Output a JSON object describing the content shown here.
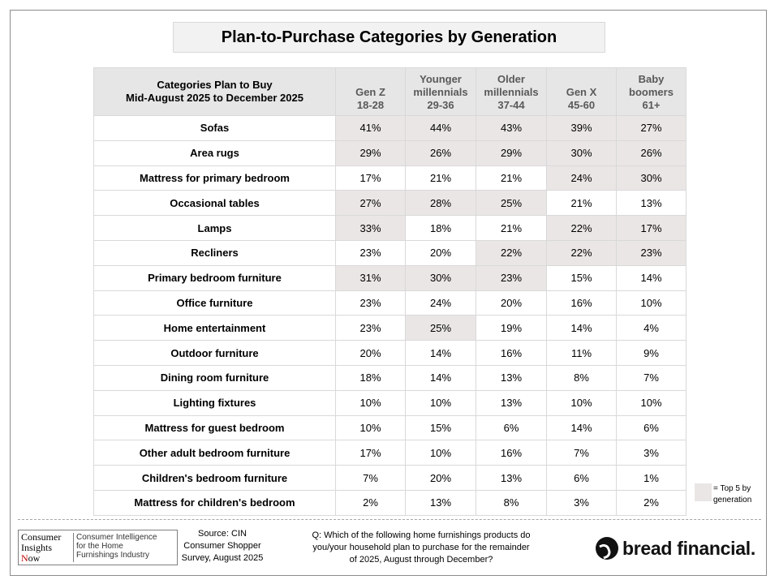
{
  "title": "Plan-to-Purchase Categories by Generation",
  "table": {
    "header_category": [
      "Categories Plan to Buy",
      "Mid-August 2025 to December 2025"
    ],
    "columns": [
      {
        "lines": [
          "Gen Z",
          "18-28"
        ]
      },
      {
        "lines": [
          "Younger",
          "millennials",
          "29-36"
        ]
      },
      {
        "lines": [
          "Older",
          "millennials",
          "37-44"
        ]
      },
      {
        "lines": [
          "Gen X",
          "45-60"
        ]
      },
      {
        "lines": [
          "Baby",
          "boomers",
          "61+"
        ]
      }
    ],
    "rows": [
      {
        "label": "Sofas",
        "values": [
          "41%",
          "44%",
          "43%",
          "39%",
          "27%"
        ],
        "top5": [
          true,
          true,
          true,
          true,
          true
        ]
      },
      {
        "label": "Area rugs",
        "values": [
          "29%",
          "26%",
          "29%",
          "30%",
          "26%"
        ],
        "top5": [
          true,
          true,
          true,
          true,
          true
        ]
      },
      {
        "label": "Mattress for primary bedroom",
        "values": [
          "17%",
          "21%",
          "21%",
          "24%",
          "30%"
        ],
        "top5": [
          false,
          false,
          false,
          true,
          true
        ]
      },
      {
        "label": "Occasional tables",
        "values": [
          "27%",
          "28%",
          "25%",
          "21%",
          "13%"
        ],
        "top5": [
          true,
          true,
          true,
          false,
          false
        ]
      },
      {
        "label": "Lamps",
        "values": [
          "33%",
          "18%",
          "21%",
          "22%",
          "17%"
        ],
        "top5": [
          true,
          false,
          false,
          true,
          true
        ]
      },
      {
        "label": "Recliners",
        "values": [
          "23%",
          "20%",
          "22%",
          "22%",
          "23%"
        ],
        "top5": [
          false,
          false,
          true,
          true,
          true
        ]
      },
      {
        "label": "Primary bedroom furniture",
        "values": [
          "31%",
          "30%",
          "23%",
          "15%",
          "14%"
        ],
        "top5": [
          true,
          true,
          true,
          false,
          false
        ]
      },
      {
        "label": "Office furniture",
        "values": [
          "23%",
          "24%",
          "20%",
          "16%",
          "10%"
        ],
        "top5": [
          false,
          false,
          false,
          false,
          false
        ]
      },
      {
        "label": "Home entertainment",
        "values": [
          "23%",
          "25%",
          "19%",
          "14%",
          "4%"
        ],
        "top5": [
          false,
          true,
          false,
          false,
          false
        ]
      },
      {
        "label": "Outdoor furniture",
        "values": [
          "20%",
          "14%",
          "16%",
          "11%",
          "9%"
        ],
        "top5": [
          false,
          false,
          false,
          false,
          false
        ]
      },
      {
        "label": "Dining room furniture",
        "values": [
          "18%",
          "14%",
          "13%",
          "8%",
          "7%"
        ],
        "top5": [
          false,
          false,
          false,
          false,
          false
        ]
      },
      {
        "label": "Lighting fixtures",
        "values": [
          "10%",
          "10%",
          "13%",
          "10%",
          "10%"
        ],
        "top5": [
          false,
          false,
          false,
          false,
          false
        ]
      },
      {
        "label": "Mattress for guest bedroom",
        "values": [
          "10%",
          "15%",
          "6%",
          "14%",
          "6%"
        ],
        "top5": [
          false,
          false,
          false,
          false,
          false
        ]
      },
      {
        "label": "Other adult bedroom furniture",
        "values": [
          "17%",
          "10%",
          "16%",
          "7%",
          "3%"
        ],
        "top5": [
          false,
          false,
          false,
          false,
          false
        ]
      },
      {
        "label": "Children's bedroom furniture",
        "values": [
          "7%",
          "20%",
          "13%",
          "6%",
          "1%"
        ],
        "top5": [
          false,
          false,
          false,
          false,
          false
        ]
      },
      {
        "label": "Mattress for children's bedroom",
        "values": [
          "2%",
          "13%",
          "8%",
          "3%",
          "2%"
        ],
        "top5": [
          false,
          false,
          false,
          false,
          false
        ]
      }
    ]
  },
  "legend": {
    "lines": [
      "= Top 5 by",
      "generation"
    ],
    "color": "#eae6e5"
  },
  "footer": {
    "cin_logo": {
      "left_lines": [
        "Consumer",
        "Insights",
        "ow"
      ],
      "n_letter": "N",
      "right_lines": [
        "Consumer Intelligence",
        "for the Home",
        "Furnishings Industry"
      ]
    },
    "source_lines": [
      "Source: CIN",
      "Consumer Shopper",
      "Survey, August 2025"
    ],
    "question_lines": [
      "Q: Which of the following home furnishings products do",
      "you/your household plan to purchase for the remainder",
      "of 2025, August through December?"
    ],
    "bread_logo_text": "bread financial."
  },
  "colors": {
    "header_bg": "#e7e6e6",
    "header_text": "#595959",
    "top5_bg": "#eae6e5",
    "border": "#d9d9d9"
  }
}
